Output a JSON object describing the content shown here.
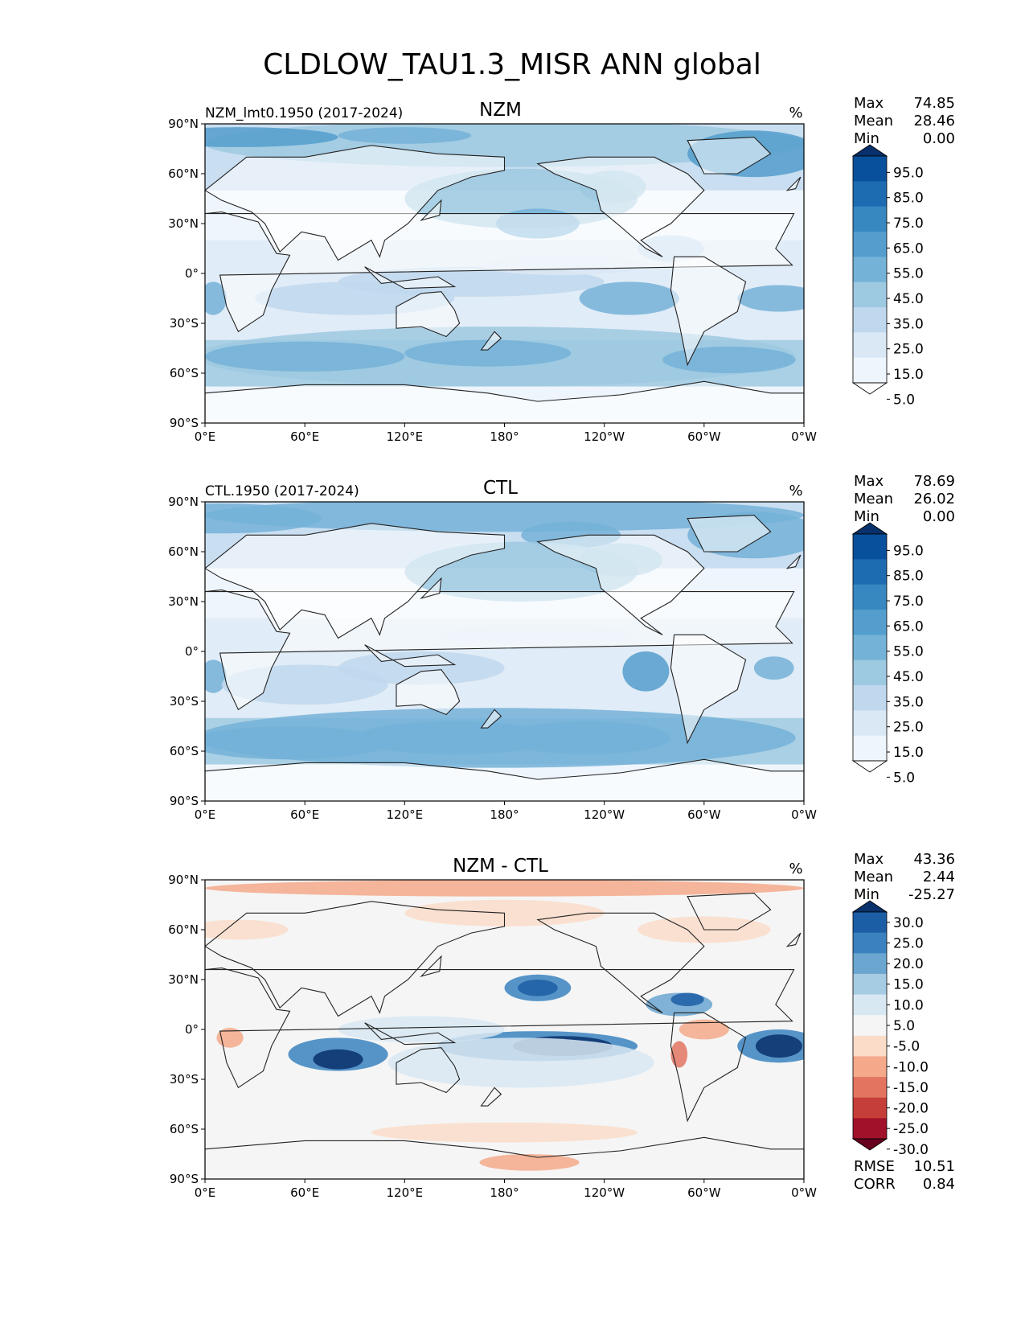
{
  "title": "CLDLOW_TAU1.3_MISR ANN global",
  "x_ticks": [
    "0°E",
    "60°E",
    "120°E",
    "180°",
    "120°W",
    "60°W",
    "0°W"
  ],
  "y_ticks": [
    "90°N",
    "60°N",
    "30°N",
    "0°",
    "30°S",
    "60°S",
    "90°S"
  ],
  "panels": [
    {
      "id": "nzm",
      "left_label": "NZM_lmt0.1950 (2017-2024)",
      "center_label": "NZM",
      "units": "%",
      "stats": [
        {
          "label": "Max",
          "value": "74.85"
        },
        {
          "label": "Mean",
          "value": "28.46"
        },
        {
          "label": "Min",
          "value": "0.00"
        }
      ],
      "colorbar": {
        "levels": [
          "95.0",
          "85.0",
          "75.0",
          "65.0",
          "55.0",
          "45.0",
          "35.0",
          "25.0",
          "15.0",
          "5.0"
        ],
        "colors": [
          "#08306b",
          "#08509b",
          "#1d6cb1",
          "#3787c0",
          "#539ecd",
          "#74b2d8",
          "#9dc9e1",
          "#bfd8ed",
          "#dae8f5",
          "#eef5fc",
          "#ffffff"
        ]
      },
      "extra_stats": []
    },
    {
      "id": "ctl",
      "left_label": "CTL.1950 (2017-2024)",
      "center_label": "CTL",
      "units": "%",
      "stats": [
        {
          "label": "Max",
          "value": "78.69"
        },
        {
          "label": "Mean",
          "value": "26.02"
        },
        {
          "label": "Min",
          "value": "0.00"
        }
      ],
      "colorbar": {
        "levels": [
          "95.0",
          "85.0",
          "75.0",
          "65.0",
          "55.0",
          "45.0",
          "35.0",
          "25.0",
          "15.0",
          "5.0"
        ],
        "colors": [
          "#08306b",
          "#08509b",
          "#1d6cb1",
          "#3787c0",
          "#539ecd",
          "#74b2d8",
          "#9dc9e1",
          "#bfd8ed",
          "#dae8f5",
          "#eef5fc",
          "#ffffff"
        ]
      },
      "extra_stats": []
    },
    {
      "id": "diff",
      "left_label": "",
      "center_label": "NZM - CTL",
      "units": "%",
      "stats": [
        {
          "label": "Max",
          "value": "43.36"
        },
        {
          "label": "Mean",
          "value": "2.44"
        },
        {
          "label": "Min",
          "value": "-25.27"
        }
      ],
      "colorbar": {
        "levels": [
          "30.0",
          "25.0",
          "20.0",
          "15.0",
          "10.0",
          "5.0",
          "-5.0",
          "-10.0",
          "-15.0",
          "-20.0",
          "-25.0",
          "-30.0"
        ],
        "colors": [
          "#08306b",
          "#1c5ea6",
          "#3a82bf",
          "#6aa6d0",
          "#a6cce3",
          "#d8e8f2",
          "#f5f5f5",
          "#fadcc9",
          "#f3a98a",
          "#e27460",
          "#c63e3a",
          "#a1112a",
          "#67001f"
        ]
      },
      "extra_stats": [
        {
          "label": "RMSE",
          "value": "10.51"
        },
        {
          "label": "CORR",
          "value": "0.84"
        }
      ]
    }
  ],
  "chart_data": {
    "type": "heatmap",
    "title": "CLDLOW_TAU1.3_MISR ANN global",
    "projection": "plate carree, longitude 0°E to 0°W (360°), latitude 90°S to 90°N",
    "x_range": [
      0,
      360
    ],
    "y_range": [
      -90,
      90
    ],
    "units": "%",
    "fields": [
      {
        "name": "NZM",
        "case": "NZM_lmt0.1950 (2017-2024)",
        "max": 74.85,
        "mean": 28.46,
        "min": 0.0,
        "contour_levels": [
          5,
          15,
          25,
          35,
          45,
          55,
          65,
          75,
          85,
          95
        ]
      },
      {
        "name": "CTL",
        "case": "CTL.1950 (2017-2024)",
        "max": 78.69,
        "mean": 26.02,
        "min": 0.0,
        "contour_levels": [
          5,
          15,
          25,
          35,
          45,
          55,
          65,
          75,
          85,
          95
        ]
      },
      {
        "name": "NZM - CTL",
        "max": 43.36,
        "mean": 2.44,
        "min": -25.27,
        "rmse": 10.51,
        "corr": 0.84,
        "contour_levels": [
          -30,
          -25,
          -20,
          -15,
          -10,
          -5,
          5,
          10,
          15,
          20,
          25,
          30
        ]
      }
    ]
  }
}
